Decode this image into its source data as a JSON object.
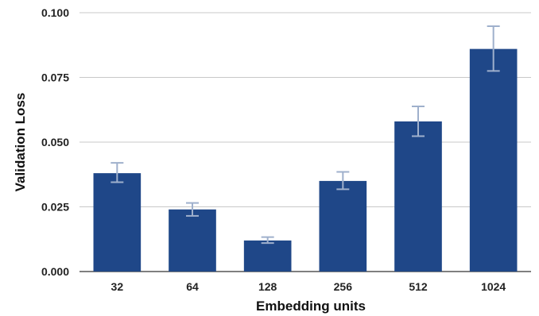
{
  "chart_data": {
    "type": "bar",
    "title": "",
    "xlabel": "Embedding units",
    "ylabel": "Validation Loss",
    "categories": [
      "32",
      "64",
      "128",
      "256",
      "512",
      "1024"
    ],
    "values": [
      0.038,
      0.024,
      0.012,
      0.035,
      0.058,
      0.086
    ],
    "error_low": [
      0.0345,
      0.0215,
      0.011,
      0.0318,
      0.0523,
      0.0775
    ],
    "error_high": [
      0.042,
      0.0265,
      0.0133,
      0.0385,
      0.0638,
      0.0948
    ],
    "ylim": [
      0,
      0.1
    ],
    "yticks": [
      "0.000",
      "0.025",
      "0.050",
      "0.075",
      "0.100"
    ],
    "ytick_values": [
      0,
      0.025,
      0.05,
      0.075,
      0.1
    ],
    "grid": true,
    "legend": "none",
    "colors": {
      "bar": "#1f4788",
      "error_bar": "#9fb0cc"
    }
  }
}
